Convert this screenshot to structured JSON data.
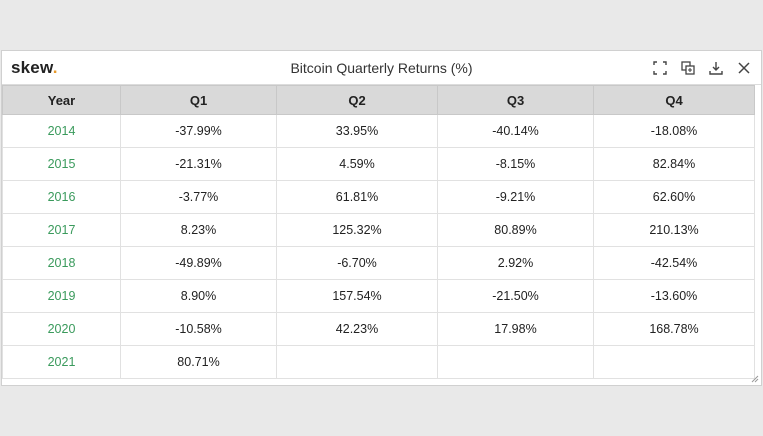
{
  "header": {
    "logo_text": "skew",
    "logo_dot": ".",
    "title": "Bitcoin Quarterly Returns (%)",
    "tools": [
      "fullscreen-icon",
      "copy-icon",
      "download-icon",
      "close-icon"
    ]
  },
  "colors": {
    "year_text": "#3a9a5c",
    "logo_dot": "#e89a2b",
    "header_bg": "#d9d9d9"
  },
  "table": {
    "columns": [
      "Year",
      "Q1",
      "Q2",
      "Q3",
      "Q4"
    ],
    "rows": [
      [
        "2014",
        "-37.99%",
        "33.95%",
        "-40.14%",
        "-18.08%"
      ],
      [
        "2015",
        "-21.31%",
        "4.59%",
        "-8.15%",
        "82.84%"
      ],
      [
        "2016",
        "-3.77%",
        "61.81%",
        "-9.21%",
        "62.60%"
      ],
      [
        "2017",
        "8.23%",
        "125.32%",
        "80.89%",
        "210.13%"
      ],
      [
        "2018",
        "-49.89%",
        "-6.70%",
        "2.92%",
        "-42.54%"
      ],
      [
        "2019",
        "8.90%",
        "157.54%",
        "-21.50%",
        "-13.60%"
      ],
      [
        "2020",
        "-10.58%",
        "42.23%",
        "17.98%",
        "168.78%"
      ],
      [
        "2021",
        "80.71%",
        "",
        "",
        ""
      ]
    ]
  }
}
